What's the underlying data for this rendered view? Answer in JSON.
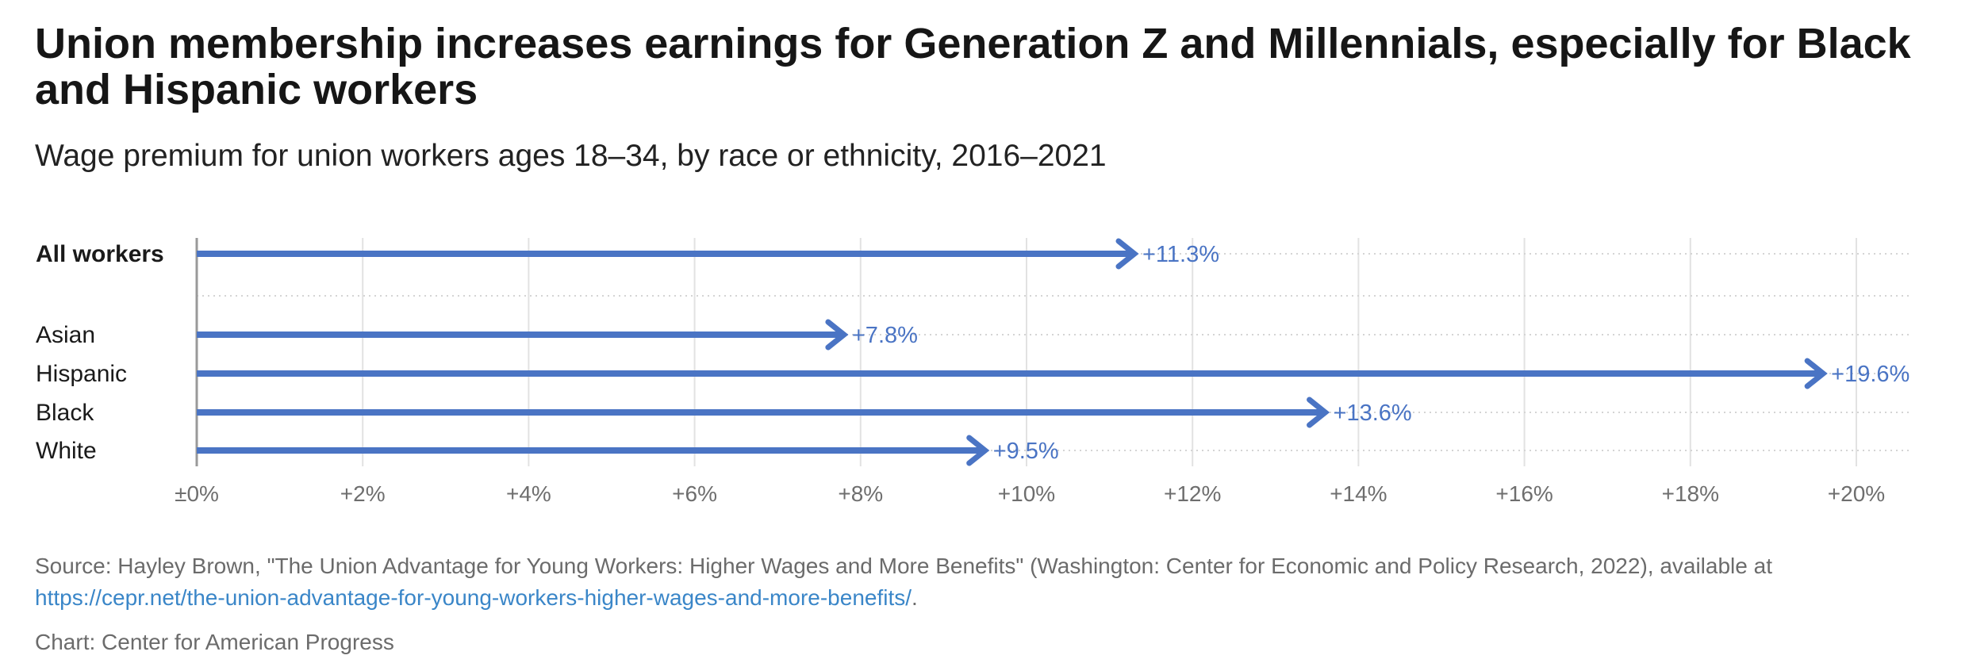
{
  "title": "Union membership increases earnings for Generation Z and Millennials, especially for Black and Hispanic workers",
  "subtitle": "Wage premium for union workers ages 18–34, by race or ethnicity, 2016–2021",
  "chart_data": {
    "type": "bar",
    "orientation": "horizontal",
    "categories": [
      "All workers",
      "Asian",
      "Hispanic",
      "Black",
      "White"
    ],
    "bold_categories": [
      "All workers"
    ],
    "values": [
      11.3,
      7.8,
      19.6,
      13.6,
      9.5
    ],
    "value_labels": [
      "+11.3%",
      "+7.8%",
      "+19.6%",
      "+13.6%",
      "+9.5%"
    ],
    "xlim": [
      0,
      20.6
    ],
    "ticks": [
      0,
      2,
      4,
      6,
      8,
      10,
      12,
      14,
      16,
      18,
      20
    ],
    "tick_labels": [
      "±0%",
      "+2%",
      "+4%",
      "+6%",
      "+8%",
      "+10%",
      "+12%",
      "+14%",
      "+16%",
      "+18%",
      "+20%"
    ],
    "grid": true,
    "bar_color": "#4a74c4",
    "label_color": "#4a74c4"
  },
  "source": {
    "text": "Source: Hayley Brown, \"The Union Advantage for Young Workers: Higher Wages and More Benefits\" (Washington: Center for Economic and Policy Research, 2022), available at",
    "link": "https://cepr.net/the-union-advantage-for-young-workers-higher-wages-and-more-benefits/",
    "end": "."
  },
  "credit": "Chart: Center for American Progress"
}
